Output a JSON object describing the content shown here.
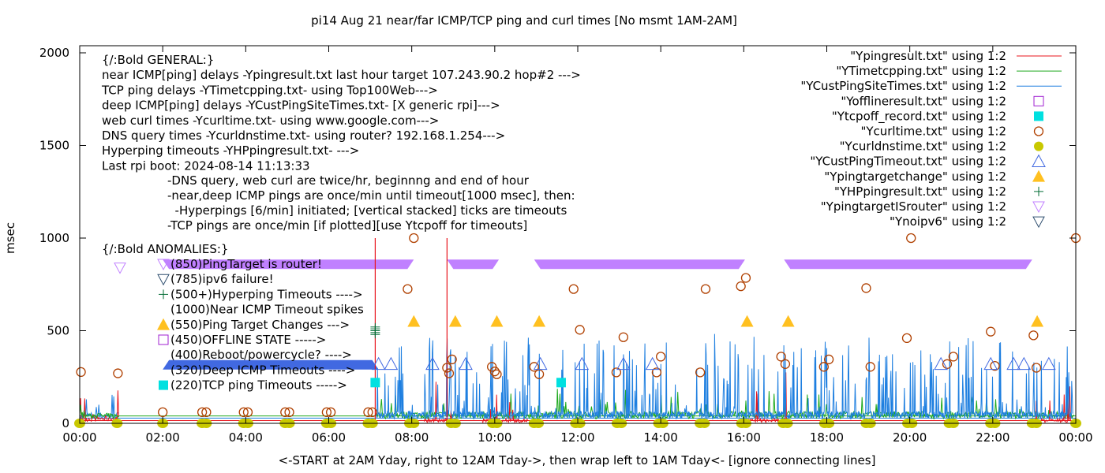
{
  "chart_data": {
    "type": "line",
    "title": "pi14 Aug 21  near/far ICMP/TCP ping and curl times [No msmt 1AM-2AM]",
    "xlabel": "<-START at 2AM Yday, right to 12AM Tday->, then wrap left to 1AM Tday<- [ignore connecting lines]",
    "ylabel": "msec",
    "xlim_hours": [
      0,
      24
    ],
    "ylim": [
      0,
      2000
    ],
    "x_ticks": [
      "00:00",
      "02:00",
      "04:00",
      "06:00",
      "08:00",
      "10:00",
      "12:00",
      "14:00",
      "16:00",
      "18:00",
      "20:00",
      "22:00",
      "00:00"
    ],
    "y_ticks": [
      0,
      500,
      1000,
      1500,
      2000
    ],
    "grid": false,
    "legend_position": "top-right",
    "legend": [
      {
        "label": "\"Ypingresult.txt\" using 1:2",
        "style": "line",
        "color": "#e8141c"
      },
      {
        "label": "\"YTimetcpping.txt\" using 1:2",
        "style": "line",
        "color": "#1ba81b"
      },
      {
        "label": "\"YCustPingSiteTimes.txt\" using 1:2",
        "style": "line",
        "color": "#1e7fe0"
      },
      {
        "label": "\"Yofflineresult.txt\" using 1:2",
        "style": "open-square",
        "color": "#a020d0"
      },
      {
        "label": "\"Ytcpoff_record.txt\" using 1:2",
        "style": "filled-square",
        "color": "#00e0e0"
      },
      {
        "label": "\"Ycurltime.txt\" using 1:2",
        "style": "open-circle",
        "color": "#b04000"
      },
      {
        "label": "\"Ycurldnstime.txt\" using 1:2",
        "style": "filled-circle",
        "color": "#c8c800"
      },
      {
        "label": "\"YCustPingTimeout.txt\" using 1:2",
        "style": "open-triangle-up",
        "color": "#4169e1"
      },
      {
        "label": "\"Ypingtargetchange\" using 1:2",
        "style": "filled-triangle-up",
        "color": "#ffc020"
      },
      {
        "label": "\"YHPpingresult.txt\" using 1:2",
        "style": "plus",
        "color": "#006b33"
      },
      {
        "label": "\"YpingtargetISrouter\" using 1:2",
        "style": "open-triangle-down",
        "color": "#c080ff"
      },
      {
        "label": "\"Ynoipv6\" using 1:2",
        "style": "open-triangle-down",
        "color": "#2f4f6f"
      }
    ],
    "annotations_general": [
      "{/:Bold GENERAL:}",
      "near ICMP[ping] delays -Ypingresult.txt last hour target 107.243.90.2 hop#2 --->",
      "TCP ping delays -YTimetcpping.txt- using Top100Web--->",
      "deep ICMP[ping] delays -YCustPingSiteTimes.txt- [X generic rpi]--->",
      "web curl times -Ycurltime.txt- using www.google.com--->",
      "DNS query times -Ycurldnstime.txt- using router? 192.168.1.254--->",
      "Hyperping timeouts -YHPpingresult.txt- --->",
      "Last rpi boot: 2024-08-14 11:13:33"
    ],
    "annotations_notes": [
      "-DNS query, web curl are twice/hr, beginnng and end of hour",
      "-near,deep ICMP pings are once/min until timeout[1000 msec], then:",
      "  -Hyperpings [6/min] initiated; [vertical stacked] ticks are timeouts",
      "-TCP pings are once/min [if plotted][use Ytcpoff for timeouts]"
    ],
    "annotations_anomalies_title": "{/:Bold ANOMALIES:}",
    "annotations_anomalies": [
      {
        "text": "(850)PingTarget is router!",
        "marker": "open-triangle-down",
        "color": "#c080ff"
      },
      {
        "text": "(785)ipv6 failure!",
        "marker": "open-triangle-down",
        "color": "#2f4f6f"
      },
      {
        "text": "(500+)Hyperping Timeouts ---->",
        "marker": "plus",
        "color": "#006b33"
      },
      {
        "text": "(1000)Near ICMP Timeout spikes",
        "marker": "none",
        "color": ""
      },
      {
        "text": "(550)Ping Target Changes ---> ",
        "marker": "filled-triangle-up",
        "color": "#ffc020"
      },
      {
        "text": "(450)OFFLINE STATE ----->",
        "marker": "open-square",
        "color": "#a020d0"
      },
      {
        "text": "(400)Reboot/powercycle? ---->",
        "marker": "none",
        "color": ""
      },
      {
        "text": "(320)Deep ICMP Timeouts ---->",
        "marker": "none",
        "color": ""
      },
      {
        "text": "(220)TCP ping Timeouts ----->",
        "marker": "filled-square",
        "color": "#00e0e0"
      }
    ],
    "series": {
      "ping_target_is_router_segments_hours": [
        [
          2.0,
          8.05
        ],
        [
          8.85,
          10.1
        ],
        [
          10.95,
          16.03
        ],
        [
          16.97,
          22.95
        ]
      ],
      "ping_target_is_router_level": 850,
      "ping_target_is_router_isolated": [
        {
          "x": 0.97,
          "y": 840
        }
      ],
      "reboot_bar_hours": [
        2.0,
        7.2
      ],
      "reboot_bar_level": 320,
      "ping_target_change": [
        {
          "x": 8.05,
          "y": 550
        },
        {
          "x": 9.05,
          "y": 550
        },
        {
          "x": 10.05,
          "y": 550
        },
        {
          "x": 11.07,
          "y": 550
        },
        {
          "x": 16.08,
          "y": 550
        },
        {
          "x": 17.07,
          "y": 550
        },
        {
          "x": 23.07,
          "y": 550
        }
      ],
      "tcp_timeouts": [
        {
          "x": 7.12,
          "y": 220
        },
        {
          "x": 11.6,
          "y": 220
        }
      ],
      "hyperping_timeouts": [
        {
          "x": 7.12,
          "y": 520
        },
        {
          "x": 7.12,
          "y": 510
        },
        {
          "x": 7.12,
          "y": 500
        },
        {
          "x": 7.12,
          "y": 490
        },
        {
          "x": 7.12,
          "y": 480
        }
      ],
      "cust_ping_timeouts": [
        {
          "x": 7.2,
          "y": 320
        },
        {
          "x": 7.5,
          "y": 320
        },
        {
          "x": 8.5,
          "y": 320
        },
        {
          "x": 9.3,
          "y": 320
        },
        {
          "x": 11.1,
          "y": 320
        },
        {
          "x": 12.1,
          "y": 320
        },
        {
          "x": 13.1,
          "y": 320
        },
        {
          "x": 13.8,
          "y": 320
        },
        {
          "x": 20.75,
          "y": 320
        },
        {
          "x": 21.95,
          "y": 320
        },
        {
          "x": 22.5,
          "y": 320
        },
        {
          "x": 22.75,
          "y": 320
        },
        {
          "x": 23.35,
          "y": 320
        }
      ],
      "curl_times": [
        {
          "x": 0.03,
          "y": 277
        },
        {
          "x": 0.92,
          "y": 270
        },
        {
          "x": 2.0,
          "y": 60
        },
        {
          "x": 2.95,
          "y": 60
        },
        {
          "x": 3.05,
          "y": 60
        },
        {
          "x": 3.95,
          "y": 60
        },
        {
          "x": 4.05,
          "y": 60
        },
        {
          "x": 4.95,
          "y": 60
        },
        {
          "x": 5.05,
          "y": 60
        },
        {
          "x": 5.95,
          "y": 60
        },
        {
          "x": 6.05,
          "y": 60
        },
        {
          "x": 6.95,
          "y": 60
        },
        {
          "x": 7.05,
          "y": 60
        },
        {
          "x": 7.9,
          "y": 725
        },
        {
          "x": 8.05,
          "y": 1000
        },
        {
          "x": 8.85,
          "y": 300
        },
        {
          "x": 8.9,
          "y": 270
        },
        {
          "x": 8.97,
          "y": 345
        },
        {
          "x": 9.93,
          "y": 305
        },
        {
          "x": 10.0,
          "y": 280
        },
        {
          "x": 10.05,
          "y": 265
        },
        {
          "x": 10.95,
          "y": 305
        },
        {
          "x": 11.07,
          "y": 265
        },
        {
          "x": 11.9,
          "y": 725
        },
        {
          "x": 12.05,
          "y": 505
        },
        {
          "x": 12.93,
          "y": 275
        },
        {
          "x": 13.1,
          "y": 465
        },
        {
          "x": 13.9,
          "y": 275
        },
        {
          "x": 14.0,
          "y": 360
        },
        {
          "x": 14.95,
          "y": 275
        },
        {
          "x": 15.08,
          "y": 725
        },
        {
          "x": 15.93,
          "y": 740
        },
        {
          "x": 16.05,
          "y": 785
        },
        {
          "x": 16.9,
          "y": 360
        },
        {
          "x": 17.0,
          "y": 320
        },
        {
          "x": 17.93,
          "y": 305
        },
        {
          "x": 18.05,
          "y": 345
        },
        {
          "x": 18.95,
          "y": 730
        },
        {
          "x": 19.05,
          "y": 305
        },
        {
          "x": 19.93,
          "y": 460
        },
        {
          "x": 20.03,
          "y": 1000
        },
        {
          "x": 20.9,
          "y": 320
        },
        {
          "x": 21.05,
          "y": 360
        },
        {
          "x": 21.95,
          "y": 495
        },
        {
          "x": 22.05,
          "y": 310
        },
        {
          "x": 22.98,
          "y": 475
        },
        {
          "x": 23.05,
          "y": 300
        },
        {
          "x": 24.0,
          "y": 1000
        }
      ],
      "curl_dns_times_hours": [
        0.0,
        0.9,
        2.0,
        2.95,
        3.05,
        3.95,
        4.05,
        4.95,
        5.05,
        5.95,
        6.05,
        6.95,
        7.05,
        7.95,
        8.05,
        8.95,
        9.05,
        9.95,
        10.05,
        10.95,
        11.05,
        11.95,
        12.05,
        12.95,
        13.05,
        13.95,
        14.05,
        14.95,
        15.05,
        15.95,
        16.05,
        16.95,
        17.05,
        17.95,
        18.05,
        18.95,
        19.05,
        19.95,
        20.05,
        20.95,
        21.05,
        21.95,
        22.05,
        22.95,
        23.05,
        24.0
      ],
      "curl_dns_level": 0,
      "near_icmp_spikes": [
        {
          "x": 7.12,
          "y": 1000
        },
        {
          "x": 8.85,
          "y": 1000
        }
      ],
      "near_icmp_baseline": 15,
      "tcp_baseline": 40,
      "deep_icmp_baseline": 28
    }
  }
}
